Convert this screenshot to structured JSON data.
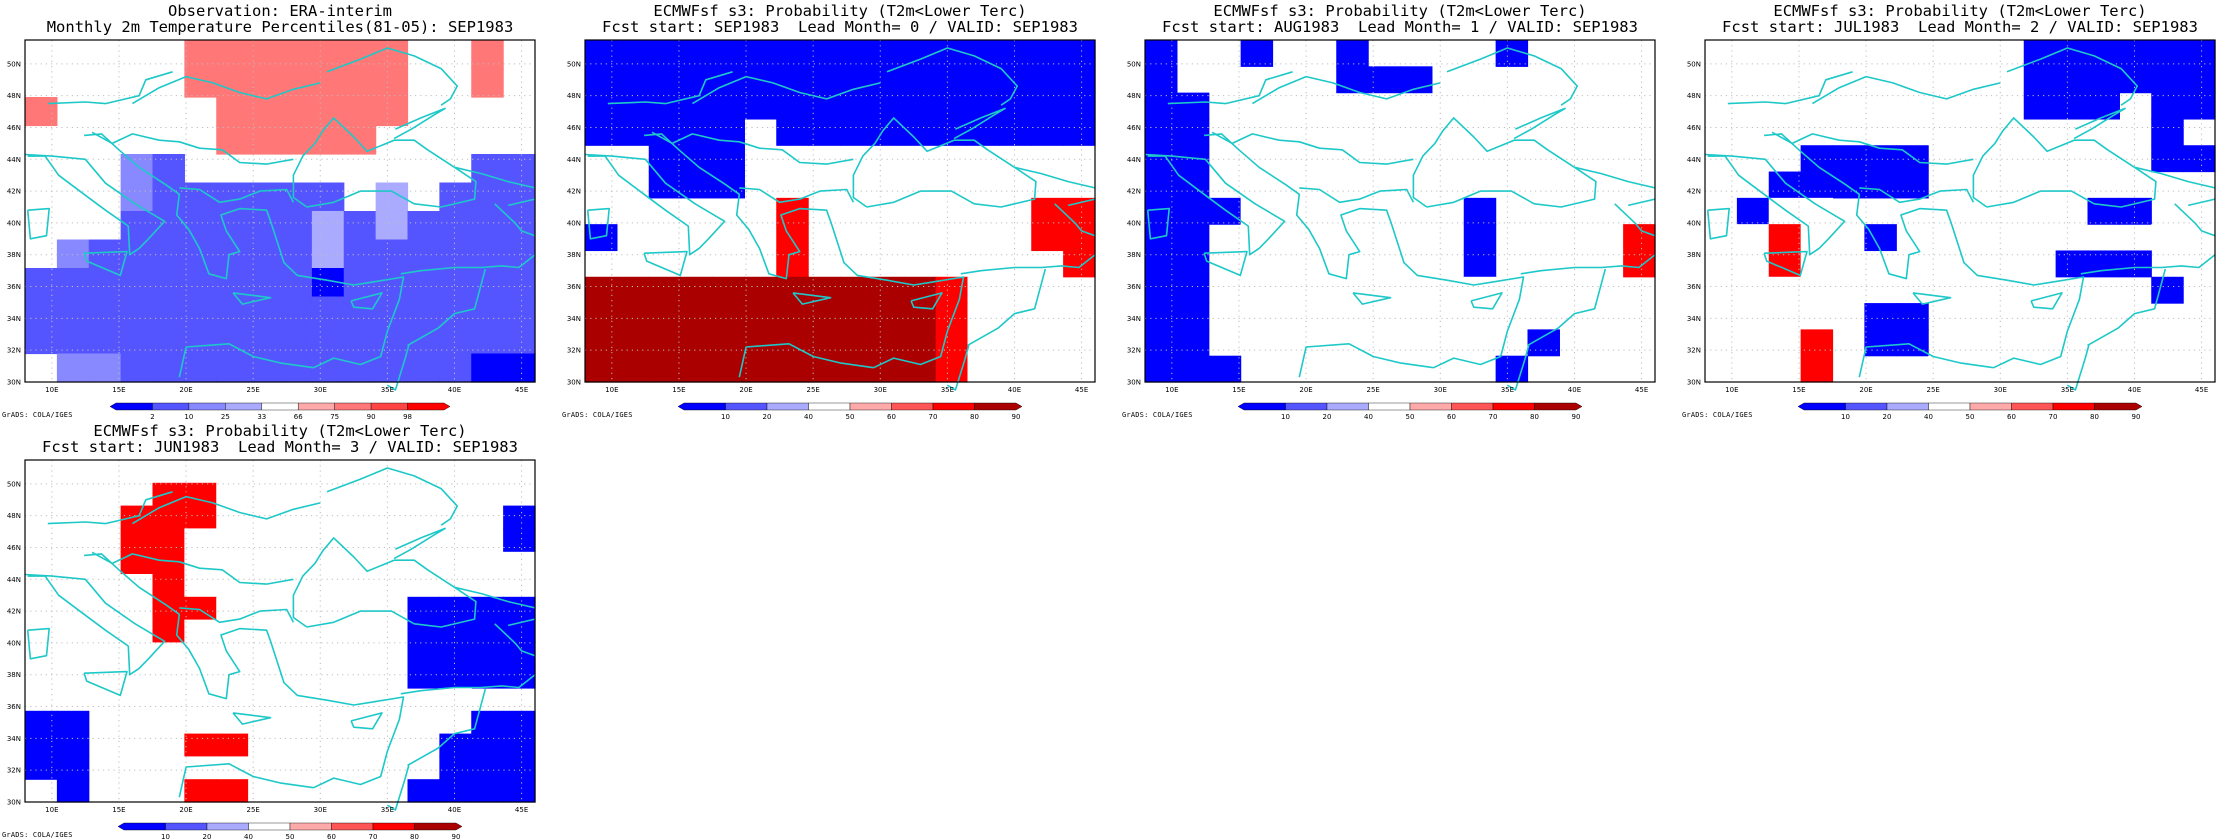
{
  "panels": [
    {
      "title_line1": "Observation: ERA-interim",
      "title_line2": "Monthly 2m Temperature Percentiles(81-05): SEP1983",
      "colorbar_type": "percentile",
      "grid_values": [
        [
          0,
          0,
          0,
          0,
          0,
          88,
          80,
          80,
          80,
          82,
          80,
          80,
          0,
          0,
          82,
          0
        ],
        [
          0,
          0,
          0,
          0,
          0,
          82,
          80,
          80,
          80,
          80,
          84,
          80,
          0,
          0,
          82,
          0
        ],
        [
          78,
          0,
          0,
          0,
          0,
          0,
          80,
          80,
          80,
          80,
          80,
          80,
          0,
          0,
          0,
          0
        ],
        [
          0,
          0,
          0,
          0,
          0,
          0,
          80,
          80,
          80,
          80,
          80,
          0,
          0,
          0,
          0,
          0
        ],
        [
          0,
          0,
          0,
          12,
          8,
          0,
          0,
          0,
          0,
          0,
          0,
          0,
          0,
          0,
          8,
          8
        ],
        [
          0,
          0,
          0,
          12,
          8,
          8,
          8,
          8,
          8,
          8,
          0,
          30,
          0,
          8,
          8,
          8
        ],
        [
          0,
          0,
          0,
          8,
          8,
          8,
          8,
          8,
          8,
          30,
          8,
          30,
          8,
          8,
          8,
          8
        ],
        [
          0,
          12,
          8,
          8,
          8,
          8,
          8,
          8,
          8,
          30,
          8,
          8,
          8,
          8,
          8,
          8
        ],
        [
          8,
          8,
          8,
          8,
          8,
          5,
          8,
          8,
          8,
          2,
          8,
          8,
          5,
          8,
          8,
          8
        ],
        [
          8,
          8,
          8,
          8,
          8,
          8,
          8,
          8,
          8,
          8,
          8,
          8,
          5,
          8,
          8,
          8
        ],
        [
          8,
          8,
          8,
          8,
          8,
          8,
          8,
          8,
          8,
          8,
          8,
          8,
          5,
          8,
          8,
          8
        ],
        [
          0,
          12,
          12,
          8,
          8,
          8,
          8,
          8,
          8,
          8,
          8,
          8,
          5,
          8,
          2,
          2
        ]
      ],
      "colorbar_labels": [
        "2",
        "10",
        "25",
        "33",
        "66",
        "75",
        "90",
        "98"
      ]
    },
    {
      "title_line1": "ECMWFsf s3: Probability (T2m<Lower Terc)",
      "title_line2": "Fcst start: SEP1983  Lead Month= 0 / VALID: SEP1983",
      "colorbar_type": "probability",
      "grid_values": [
        [
          5,
          5,
          5,
          5,
          5,
          5,
          5,
          5,
          5,
          5,
          5,
          5,
          5,
          5,
          5,
          5
        ],
        [
          5,
          5,
          5,
          5,
          5,
          5,
          5,
          5,
          5,
          5,
          5,
          5,
          5,
          5,
          5,
          5
        ],
        [
          5,
          5,
          5,
          5,
          5,
          5,
          5,
          5,
          5,
          5,
          5,
          5,
          5,
          5,
          5,
          5
        ],
        [
          5,
          5,
          5,
          5,
          5,
          0,
          5,
          5,
          5,
          5,
          5,
          5,
          5,
          5,
          5,
          5
        ],
        [
          0,
          0,
          5,
          5,
          5,
          0,
          0,
          0,
          0,
          0,
          0,
          0,
          0,
          0,
          0,
          0
        ],
        [
          0,
          0,
          5,
          5,
          5,
          0,
          0,
          0,
          45,
          45,
          45,
          45,
          45,
          45,
          0,
          0
        ],
        [
          0,
          0,
          0,
          0,
          0,
          0,
          75,
          0,
          45,
          45,
          45,
          45,
          45,
          45,
          75,
          75
        ],
        [
          5,
          0,
          0,
          0,
          0,
          0,
          75,
          0,
          0,
          0,
          0,
          0,
          0,
          0,
          75,
          75
        ],
        [
          0,
          0,
          0,
          45,
          45,
          0,
          75,
          0,
          0,
          0,
          0,
          0,
          0,
          0,
          0,
          75
        ],
        [
          85,
          85,
          85,
          85,
          85,
          95,
          95,
          95,
          85,
          85,
          85,
          75,
          45,
          45,
          0,
          0
        ],
        [
          85,
          85,
          85,
          85,
          85,
          95,
          95,
          95,
          95,
          85,
          85,
          75,
          45,
          45,
          0,
          0
        ],
        [
          85,
          85,
          85,
          85,
          85,
          95,
          95,
          95,
          95,
          85,
          85,
          75,
          45,
          45,
          0,
          0
        ],
        [
          85,
          85,
          85,
          85,
          85,
          95,
          95,
          95,
          95,
          85,
          85,
          75,
          45,
          45,
          0,
          45
        ]
      ],
      "colorbar_labels": [
        "10",
        "20",
        "40",
        "50",
        "60",
        "70",
        "80",
        "90"
      ]
    },
    {
      "title_line1": "ECMWFsf s3: Probability (T2m<Lower Terc)",
      "title_line2": "Fcst start: AUG1983  Lead Month= 1 / VALID: SEP1983",
      "colorbar_type": "probability",
      "grid_values": [
        [
          5,
          0,
          0,
          5,
          0,
          0,
          5,
          0,
          0,
          0,
          0,
          5,
          0,
          0,
          45,
          0
        ],
        [
          5,
          0,
          0,
          0,
          0,
          0,
          5,
          5,
          5,
          0,
          0,
          0,
          0,
          0,
          0,
          0
        ],
        [
          5,
          5,
          0,
          0,
          0,
          0,
          0,
          0,
          0,
          0,
          0,
          0,
          0,
          0,
          0,
          0
        ],
        [
          5,
          5,
          0,
          0,
          0,
          0,
          0,
          0,
          0,
          0,
          0,
          0,
          0,
          0,
          0,
          0
        ],
        [
          5,
          5,
          0,
          45,
          0,
          0,
          0,
          0,
          0,
          0,
          0,
          0,
          0,
          0,
          45,
          0
        ],
        [
          5,
          5,
          0,
          45,
          0,
          0,
          0,
          0,
          0,
          0,
          0,
          0,
          0,
          0,
          45,
          0
        ],
        [
          5,
          5,
          5,
          45,
          0,
          45,
          0,
          45,
          0,
          0,
          5,
          0,
          45,
          0,
          45,
          45
        ],
        [
          5,
          5,
          0,
          45,
          45,
          0,
          0,
          45,
          0,
          0,
          5,
          0,
          0,
          0,
          45,
          75
        ],
        [
          5,
          5,
          0,
          0,
          0,
          0,
          0,
          45,
          0,
          0,
          5,
          0,
          0,
          0,
          45,
          75
        ],
        [
          5,
          5,
          0,
          0,
          0,
          45,
          0,
          45,
          0,
          0,
          45,
          0,
          0,
          0,
          0,
          0
        ],
        [
          5,
          5,
          0,
          0,
          45,
          45,
          0,
          45,
          45,
          0,
          45,
          0,
          0,
          0,
          0,
          0
        ],
        [
          5,
          5,
          0,
          0,
          45,
          45,
          45,
          45,
          0,
          0,
          0,
          0,
          5,
          0,
          0,
          0
        ],
        [
          5,
          5,
          5,
          0,
          45,
          45,
          45,
          45,
          0,
          0,
          0,
          5,
          0,
          0,
          0,
          0
        ]
      ],
      "colorbar_labels": [
        "10",
        "20",
        "40",
        "50",
        "60",
        "70",
        "80",
        "90"
      ]
    },
    {
      "title_line1": "ECMWFsf s3: Probability (T2m<Lower Terc)",
      "title_line2": "Fcst start: JUL1983  Lead Month= 2 / VALID: SEP1983",
      "colorbar_type": "probability",
      "grid_values": [
        [
          0,
          0,
          0,
          0,
          0,
          0,
          0,
          0,
          45,
          45,
          5,
          5,
          5,
          5,
          5,
          5
        ],
        [
          0,
          0,
          0,
          0,
          0,
          0,
          0,
          0,
          0,
          0,
          5,
          5,
          5,
          5,
          5,
          5
        ],
        [
          45,
          0,
          0,
          0,
          0,
          0,
          45,
          45,
          45,
          0,
          5,
          5,
          5,
          0,
          5,
          5
        ],
        [
          45,
          0,
          0,
          0,
          0,
          0,
          0,
          0,
          0,
          0,
          0,
          0,
          0,
          0,
          5,
          0
        ],
        [
          45,
          0,
          0,
          5,
          5,
          5,
          5,
          0,
          0,
          0,
          0,
          0,
          0,
          0,
          5,
          5
        ],
        [
          45,
          0,
          5,
          5,
          5,
          5,
          5,
          0,
          0,
          0,
          0,
          0,
          0,
          0,
          0,
          0
        ],
        [
          0,
          5,
          45,
          45,
          0,
          0,
          0,
          0,
          0,
          0,
          0,
          0,
          5,
          5,
          0,
          0
        ],
        [
          45,
          45,
          75,
          45,
          0,
          5,
          0,
          0,
          0,
          0,
          0,
          0,
          0,
          0,
          45,
          45
        ],
        [
          45,
          45,
          75,
          45,
          0,
          0,
          0,
          0,
          0,
          0,
          0,
          5,
          5,
          5,
          0,
          0
        ],
        [
          45,
          45,
          45,
          45,
          45,
          0,
          0,
          0,
          0,
          0,
          0,
          0,
          0,
          0,
          5,
          0
        ],
        [
          45,
          45,
          45,
          45,
          0,
          5,
          5,
          0,
          0,
          0,
          0,
          0,
          0,
          0,
          0,
          0
        ],
        [
          45,
          45,
          45,
          75,
          0,
          5,
          5,
          0,
          0,
          0,
          0,
          45,
          0,
          0,
          0,
          0
        ],
        [
          45,
          45,
          45,
          75,
          0,
          0,
          0,
          45,
          45,
          45,
          45,
          45,
          0,
          0,
          0,
          0
        ]
      ],
      "colorbar_labels": [
        "10",
        "20",
        "40",
        "50",
        "60",
        "70",
        "80",
        "90"
      ]
    },
    {
      "title_line1": "ECMWFsf s3: Probability (T2m<Lower Terc)",
      "title_line2": "Fcst start: JUN1983  Lead Month= 3 / VALID: SEP1983",
      "colorbar_type": "probability",
      "grid_values": [
        [
          45,
          45,
          45,
          45,
          45,
          45,
          45,
          45,
          0,
          0,
          0,
          0,
          0,
          0,
          0,
          0
        ],
        [
          45,
          45,
          45,
          45,
          75,
          75,
          45,
          45,
          0,
          0,
          0,
          0,
          0,
          0,
          0,
          0
        ],
        [
          45,
          45,
          45,
          75,
          75,
          75,
          45,
          45,
          0,
          0,
          0,
          0,
          0,
          0,
          0,
          5
        ],
        [
          0,
          0,
          0,
          75,
          75,
          45,
          45,
          45,
          0,
          0,
          0,
          0,
          0,
          0,
          0,
          5
        ],
        [
          0,
          0,
          0,
          75,
          75,
          45,
          45,
          45,
          0,
          0,
          0,
          0,
          0,
          0,
          0,
          0
        ],
        [
          0,
          0,
          0,
          45,
          75,
          45,
          45,
          45,
          0,
          0,
          0,
          0,
          0,
          0,
          0,
          0
        ],
        [
          0,
          0,
          45,
          45,
          75,
          75,
          45,
          0,
          0,
          0,
          0,
          0,
          5,
          5,
          5,
          5
        ],
        [
          0,
          0,
          45,
          45,
          75,
          45,
          45,
          0,
          0,
          0,
          0,
          0,
          5,
          5,
          5,
          5
        ],
        [
          0,
          0,
          45,
          45,
          45,
          45,
          0,
          0,
          0,
          0,
          0,
          0,
          5,
          5,
          5,
          5
        ],
        [
          0,
          0,
          0,
          0,
          0,
          0,
          0,
          0,
          0,
          0,
          0,
          0,
          5,
          5,
          5,
          5
        ],
        [
          0,
          0,
          0,
          0,
          0,
          0,
          0,
          0,
          0,
          0,
          0,
          0,
          0,
          45,
          0,
          0
        ],
        [
          5,
          5,
          0,
          0,
          0,
          0,
          0,
          0,
          0,
          0,
          0,
          0,
          0,
          45,
          5,
          5
        ],
        [
          5,
          5,
          0,
          45,
          45,
          75,
          75,
          45,
          45,
          0,
          0,
          0,
          0,
          5,
          5,
          5
        ],
        [
          5,
          5,
          0,
          45,
          45,
          45,
          45,
          45,
          45,
          0,
          0,
          0,
          0,
          5,
          5,
          5
        ],
        [
          0,
          5,
          0,
          45,
          45,
          75,
          75,
          45,
          0,
          0,
          0,
          0,
          5,
          5,
          5,
          5
        ]
      ],
      "colorbar_labels": [
        "10",
        "20",
        "40",
        "50",
        "60",
        "70",
        "80",
        "90"
      ]
    }
  ],
  "axes": {
    "lat_labels": [
      "50N",
      "48N",
      "46N",
      "44N",
      "42N",
      "40N",
      "38N",
      "36N",
      "34N",
      "32N",
      "30N"
    ],
    "lon_labels": [
      "10E",
      "15E",
      "20E",
      "25E",
      "30E",
      "35E",
      "40E",
      "45E"
    ],
    "lat_range": [
      30,
      51.5
    ],
    "lon_range": [
      8,
      46
    ]
  },
  "credit": "GrADS: COLA/IGES",
  "colors": {
    "coast": "#1ec8c8",
    "grid_dots": "#bdbdbd",
    "frame": "#000000"
  },
  "palettes": {
    "probability": [
      "#0000ff",
      "#5555ff",
      "#aaaaff",
      "#ffffff",
      "#ffaaaa",
      "#ff5555",
      "#ff0000",
      "#aa0000"
    ],
    "percentile": [
      "#0000ff",
      "#5555ff",
      "#8888ff",
      "#aaaaff",
      "#ffffff",
      "#ffaaaa",
      "#ff7777",
      "#ff4444",
      "#ff0000"
    ]
  }
}
